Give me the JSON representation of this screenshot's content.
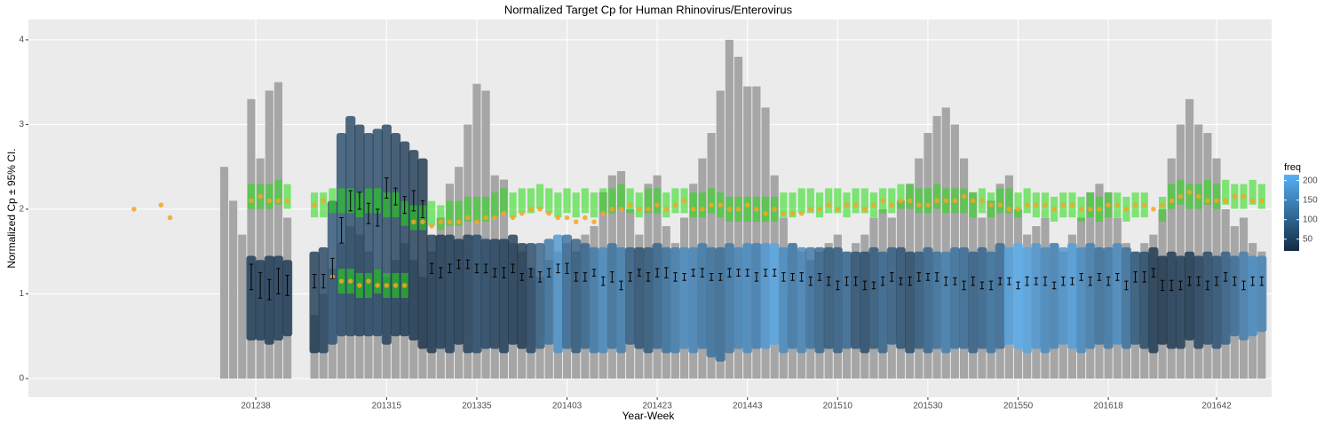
{
  "chart_data": {
    "type": "scatter",
    "title": "Normalized Target Cp for Human Rhinovirus/Enterovirus",
    "x_label": "Year-Week",
    "y_label": "Normalized Cp ± 95% CI.",
    "xlim": [
      -50.4,
      225.2
    ],
    "xticks": [
      {
        "value": 0,
        "label": "201238"
      },
      {
        "value": 29,
        "label": "201315"
      },
      {
        "value": 49,
        "label": "201335"
      },
      {
        "value": 69,
        "label": "201403"
      },
      {
        "value": 89,
        "label": "201423"
      },
      {
        "value": 109,
        "label": "201443"
      },
      {
        "value": 129,
        "label": "201510"
      },
      {
        "value": 149,
        "label": "201530"
      },
      {
        "value": 169,
        "label": "201550"
      },
      {
        "value": 189,
        "label": "201618"
      },
      {
        "value": 213,
        "label": "201642"
      }
    ],
    "ylim": [
      -0.22,
      4.24
    ],
    "yticks": [
      0,
      1,
      2,
      3,
      4
    ],
    "grid": true,
    "bar_color": "#a6a6a6",
    "green_color": "#22dd11",
    "orange_color": "#f5a623",
    "errorbar_color": "#000000",
    "legend": {
      "title": "freq",
      "low_color": "#132B43",
      "high_color": "#56B1F7",
      "lim": [
        20,
        215
      ],
      "ticks": [
        50,
        100,
        150,
        200
      ]
    },
    "x": [
      -7,
      -5,
      -3,
      -1,
      1,
      3,
      5,
      7,
      9,
      11,
      13,
      15,
      17,
      19,
      21,
      23,
      25,
      27,
      29,
      31,
      33,
      35,
      37,
      39,
      41,
      43,
      45,
      47,
      49,
      51,
      53,
      55,
      57,
      59,
      61,
      63,
      65,
      67,
      69,
      71,
      73,
      75,
      77,
      79,
      81,
      83,
      85,
      87,
      89,
      91,
      93,
      95,
      97,
      99,
      101,
      103,
      105,
      107,
      109,
      111,
      113,
      115,
      117,
      119,
      121,
      123,
      125,
      127,
      129,
      131,
      133,
      135,
      137,
      139,
      141,
      143,
      145,
      147,
      149,
      151,
      153,
      155,
      157,
      159,
      161,
      163,
      165,
      167,
      169,
      171,
      173,
      175,
      177,
      179,
      181,
      183,
      185,
      187,
      189,
      191,
      193,
      195,
      197,
      199,
      201,
      203,
      205,
      207,
      209,
      211,
      213,
      215,
      217,
      219,
      221,
      223
    ],
    "bars": [
      2.5,
      2.1,
      1.7,
      3.3,
      2.6,
      3.4,
      3.5,
      1.9,
      null,
      null,
      0.75,
      1.0,
      1.3,
      1.6,
      1.8,
      1.7,
      1.5,
      1.3,
      1.2,
      1.4,
      1.6,
      1.4,
      1.2,
      1.5,
      1.9,
      2.3,
      2.5,
      3.0,
      3.48,
      3.4,
      2.4,
      2.35,
      1.6,
      1.5,
      1.3,
      1.2,
      1.4,
      1.5,
      1.6,
      1.5,
      1.7,
      1.8,
      2.2,
      2.4,
      2.45,
      2.0,
      1.7,
      2.3,
      2.4,
      1.8,
      1.6,
      1.9,
      2.3,
      2.6,
      2.9,
      3.4,
      4.0,
      3.8,
      3.45,
      3.45,
      3.2,
      2.4,
      1.9,
      1.6,
      1.5,
      1.4,
      1.5,
      1.6,
      1.7,
      1.5,
      1.6,
      1.7,
      1.9,
      2.0,
      1.9,
      2.1,
      2.3,
      2.6,
      2.9,
      3.1,
      3.2,
      3.0,
      2.6,
      2.2,
      1.9,
      2.1,
      2.3,
      2.4,
      2.0,
      1.7,
      1.8,
      1.9,
      1.6,
      1.5,
      1.7,
      1.9,
      2.2,
      2.3,
      2.2,
      1.9,
      1.6,
      1.5,
      1.6,
      1.7,
      2.0,
      2.6,
      3.0,
      3.3,
      3.0,
      2.9,
      2.6,
      2.0,
      1.8,
      1.9,
      1.6,
      1.5
    ],
    "cloud_low": [
      null,
      null,
      null,
      0.45,
      0.45,
      0.4,
      0.45,
      0.5,
      null,
      null,
      0.3,
      0.3,
      0.4,
      0.5,
      0.5,
      0.5,
      0.5,
      0.5,
      0.4,
      0.5,
      0.5,
      0.45,
      0.35,
      0.3,
      0.35,
      0.3,
      0.4,
      0.3,
      0.3,
      0.35,
      0.35,
      0.3,
      0.4,
      0.35,
      0.3,
      0.35,
      0.4,
      0.3,
      0.35,
      0.3,
      0.35,
      0.3,
      0.3,
      0.35,
      0.3,
      0.4,
      0.35,
      0.3,
      0.35,
      0.3,
      0.3,
      0.35,
      0.3,
      0.35,
      0.25,
      0.2,
      0.3,
      0.35,
      0.3,
      0.35,
      0.35,
      0.4,
      0.3,
      0.35,
      0.3,
      0.35,
      0.3,
      0.35,
      0.3,
      0.35,
      0.35,
      0.3,
      0.35,
      0.3,
      0.4,
      0.35,
      0.3,
      0.35,
      0.3,
      0.35,
      0.3,
      0.35,
      0.35,
      0.3,
      0.35,
      0.3,
      0.35,
      0.4,
      0.35,
      0.3,
      0.35,
      0.3,
      0.35,
      0.4,
      0.35,
      0.3,
      0.35,
      0.4,
      0.35,
      0.4,
      0.35,
      0.4,
      0.35,
      0.3,
      0.4,
      0.35,
      0.35,
      0.45,
      0.35,
      0.4,
      0.35,
      0.4,
      0.5,
      0.45,
      0.5,
      0.55
    ],
    "cloud_high": [
      null,
      null,
      null,
      1.45,
      1.4,
      1.45,
      1.45,
      1.4,
      null,
      null,
      1.5,
      1.55,
      2.1,
      2.9,
      3.1,
      3.0,
      2.9,
      2.95,
      3.0,
      2.9,
      2.8,
      2.7,
      2.6,
      1.7,
      1.7,
      1.7,
      1.65,
      1.7,
      1.7,
      1.65,
      1.65,
      1.65,
      1.7,
      1.6,
      1.6,
      1.6,
      1.65,
      1.7,
      1.7,
      1.65,
      1.6,
      1.55,
      1.55,
      1.6,
      1.55,
      1.55,
      1.55,
      1.55,
      1.6,
      1.55,
      1.55,
      1.55,
      1.55,
      1.6,
      1.55,
      1.55,
      1.6,
      1.55,
      1.6,
      1.6,
      1.6,
      1.6,
      1.55,
      1.6,
      1.55,
      1.55,
      1.55,
      1.55,
      1.55,
      1.5,
      1.5,
      1.5,
      1.55,
      1.5,
      1.55,
      1.55,
      1.5,
      1.5,
      1.55,
      1.5,
      1.5,
      1.55,
      1.55,
      1.5,
      1.55,
      1.5,
      1.6,
      1.55,
      1.6,
      1.55,
      1.6,
      1.55,
      1.6,
      1.55,
      1.6,
      1.55,
      1.6,
      1.55,
      1.55,
      1.6,
      1.55,
      1.5,
      1.5,
      1.55,
      1.45,
      1.5,
      1.45,
      1.5,
      1.45,
      1.5,
      1.45,
      1.5,
      1.45,
      1.5,
      1.45,
      1.45
    ],
    "freq": [
      null,
      null,
      null,
      40,
      40,
      35,
      40,
      35,
      null,
      null,
      30,
      45,
      70,
      60,
      55,
      45,
      50,
      55,
      45,
      40,
      35,
      30,
      25,
      30,
      35,
      40,
      35,
      45,
      60,
      50,
      45,
      40,
      35,
      30,
      50,
      90,
      120,
      170,
      110,
      80,
      100,
      130,
      160,
      120,
      140,
      90,
      70,
      80,
      100,
      120,
      140,
      160,
      150,
      130,
      120,
      110,
      130,
      150,
      160,
      140,
      180,
      200,
      160,
      130,
      150,
      120,
      100,
      80,
      90,
      110,
      70,
      60,
      80,
      100,
      90,
      70,
      60,
      80,
      100,
      120,
      140,
      120,
      110,
      90,
      100,
      120,
      110,
      190,
      210,
      200,
      180,
      160,
      150,
      170,
      190,
      160,
      140,
      120,
      130,
      160,
      120,
      80,
      60,
      30,
      25,
      35,
      40,
      30,
      45,
      60,
      70,
      90,
      110,
      140,
      160,
      150
    ],
    "mean": [
      null,
      null,
      null,
      1.2,
      1.1,
      1.05,
      1.15,
      1.1,
      null,
      null,
      1.15,
      1.15,
      1.3,
      1.75,
      2.1,
      2.1,
      1.95,
      1.9,
      2.25,
      2.15,
      2.05,
      2.1,
      2.0,
      1.3,
      1.25,
      1.3,
      1.35,
      1.35,
      1.3,
      1.3,
      1.25,
      1.25,
      1.3,
      1.2,
      1.25,
      1.2,
      1.25,
      1.3,
      1.3,
      1.2,
      1.2,
      1.25,
      1.15,
      1.2,
      1.1,
      1.2,
      1.25,
      1.2,
      1.25,
      1.25,
      1.2,
      1.2,
      1.25,
      1.25,
      1.2,
      1.2,
      1.25,
      1.25,
      1.25,
      1.2,
      1.25,
      1.25,
      1.2,
      1.2,
      1.2,
      1.15,
      1.2,
      1.15,
      1.1,
      1.15,
      1.15,
      1.1,
      1.1,
      1.15,
      1.2,
      1.15,
      1.15,
      1.2,
      1.2,
      1.2,
      1.15,
      1.15,
      1.1,
      1.15,
      1.1,
      1.1,
      1.15,
      1.15,
      1.1,
      1.15,
      1.15,
      1.15,
      1.1,
      1.15,
      1.15,
      1.2,
      1.15,
      1.2,
      1.15,
      1.2,
      1.1,
      1.2,
      1.2,
      1.25,
      1.1,
      1.1,
      1.1,
      1.15,
      1.15,
      1.1,
      1.15,
      1.2,
      1.15,
      1.1,
      1.15,
      1.15
    ],
    "ci": [
      null,
      null,
      null,
      0.15,
      0.15,
      0.12,
      0.15,
      0.12,
      null,
      null,
      0.08,
      0.08,
      0.12,
      0.15,
      0.12,
      0.1,
      0.12,
      0.1,
      0.12,
      0.1,
      0.1,
      0.12,
      0.1,
      0.06,
      0.06,
      0.05,
      0.05,
      0.05,
      0.05,
      0.05,
      0.05,
      0.06,
      0.05,
      0.04,
      0.05,
      0.06,
      0.05,
      0.05,
      0.06,
      0.05,
      0.05,
      0.04,
      0.05,
      0.06,
      0.05,
      0.05,
      0.04,
      0.05,
      0.05,
      0.06,
      0.05,
      0.04,
      0.04,
      0.05,
      0.04,
      0.04,
      0.05,
      0.04,
      0.04,
      0.05,
      0.04,
      0.04,
      0.05,
      0.04,
      0.05,
      0.05,
      0.04,
      0.05,
      0.05,
      0.05,
      0.05,
      0.05,
      0.04,
      0.05,
      0.05,
      0.04,
      0.05,
      0.05,
      0.04,
      0.05,
      0.05,
      0.04,
      0.05,
      0.05,
      0.04,
      0.05,
      0.04,
      0.04,
      0.04,
      0.05,
      0.04,
      0.05,
      0.04,
      0.05,
      0.04,
      0.04,
      0.05,
      0.04,
      0.05,
      0.04,
      0.05,
      0.06,
      0.06,
      0.05,
      0.06,
      0.06,
      0.05,
      0.05,
      0.05,
      0.05,
      0.05,
      0.05,
      0.05,
      0.05,
      0.05,
      0.05
    ],
    "green": [
      null,
      null,
      null,
      2.15,
      2.15,
      2.15,
      2.2,
      2.15,
      null,
      null,
      2.05,
      2.05,
      2.1,
      2.1,
      2.1,
      2.05,
      2.1,
      2.1,
      2.05,
      2.05,
      1.95,
      1.9,
      1.9,
      1.95,
      1.9,
      1.95,
      1.95,
      2.0,
      2.0,
      2.0,
      2.05,
      2.1,
      2.05,
      2.1,
      2.1,
      2.15,
      2.1,
      2.05,
      2.1,
      2.05,
      2.1,
      2.05,
      2.1,
      2.1,
      2.15,
      2.1,
      2.05,
      2.1,
      2.1,
      2.05,
      2.1,
      2.1,
      2.05,
      2.05,
      2.1,
      2.05,
      2.0,
      2.0,
      2.0,
      2.0,
      2.0,
      2.0,
      2.05,
      2.05,
      2.1,
      2.1,
      2.05,
      2.1,
      2.1,
      2.05,
      2.1,
      2.1,
      2.05,
      2.1,
      2.1,
      2.15,
      2.15,
      2.1,
      2.1,
      2.15,
      2.1,
      2.1,
      2.1,
      2.05,
      2.1,
      2.05,
      2.1,
      2.1,
      2.05,
      2.1,
      2.05,
      2.05,
      2.0,
      2.05,
      2.05,
      2.0,
      2.05,
      2.0,
      2.05,
      2.05,
      2.0,
      2.05,
      2.05,
      null,
      2.0,
      2.15,
      2.2,
      2.15,
      2.15,
      2.2,
      2.15,
      2.2,
      2.15,
      2.15,
      2.2,
      2.15
    ],
    "orange": [
      null,
      null,
      null,
      2.1,
      2.15,
      2.1,
      2.1,
      2.1,
      null,
      null,
      2.05,
      2.1,
      1.2,
      1.15,
      1.15,
      1.1,
      1.15,
      1.1,
      1.1,
      1.1,
      1.1,
      1.85,
      1.85,
      1.8,
      1.85,
      1.85,
      1.85,
      1.9,
      1.85,
      1.9,
      1.9,
      1.95,
      1.9,
      1.95,
      2.0,
      2.0,
      1.95,
      1.9,
      1.9,
      1.85,
      1.9,
      1.85,
      1.95,
      2.0,
      2.0,
      2.05,
      2.0,
      2.0,
      2.05,
      2.0,
      2.05,
      2.1,
      2.0,
      2.0,
      2.05,
      2.05,
      2.0,
      2.0,
      2.05,
      2.0,
      1.95,
      2.0,
      1.95,
      1.95,
      1.95,
      2.0,
      2.0,
      2.05,
      2.0,
      2.05,
      2.05,
      2.0,
      2.05,
      2.1,
      2.05,
      2.1,
      2.1,
      2.05,
      2.05,
      2.1,
      2.1,
      2.1,
      2.15,
      2.1,
      2.1,
      2.05,
      2.05,
      2.0,
      2.0,
      2.05,
      2.05,
      2.05,
      2.0,
      2.05,
      2.05,
      2.0,
      2.0,
      2.0,
      2.05,
      2.05,
      2.0,
      2.05,
      2.05,
      2.0,
      2.05,
      2.1,
      2.15,
      2.2,
      2.15,
      2.1,
      2.1,
      2.1,
      2.15,
      2.15,
      2.1,
      2.1
    ],
    "green_low": {
      "x": [
        19,
        21,
        23,
        25,
        27,
        29,
        31,
        33
      ],
      "values": [
        1.15,
        1.15,
        1.1,
        1.1,
        1.15,
        1.1,
        1.1,
        1.1
      ]
    },
    "orange_early": {
      "x": [
        -27,
        -21,
        -19
      ],
      "values": [
        2.0,
        2.05,
        1.9
      ]
    }
  }
}
